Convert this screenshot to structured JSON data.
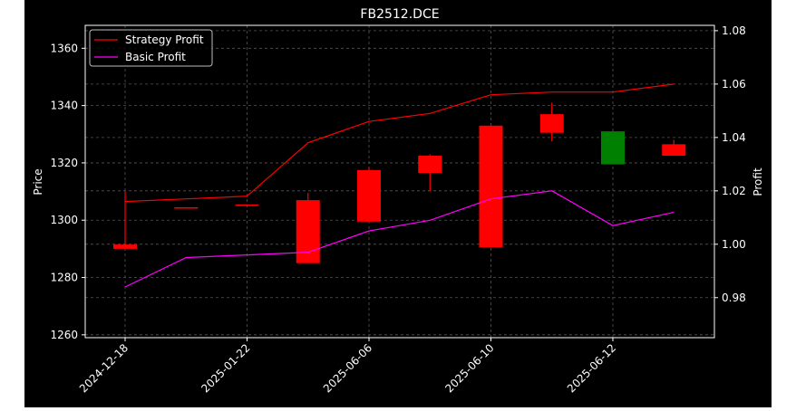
{
  "chart_data": {
    "type": "candlestick",
    "title": "FB2512.DCE",
    "xlabel": "",
    "ylabel": "Price",
    "ylabel_right": "Profit",
    "background": "#000000",
    "plot_background": "#000000",
    "grid": true,
    "legend_position": "upper-left",
    "x_tick_labels": [
      "2024-12-18",
      "2025-01-22",
      "2025-06-06",
      "2025-06-10",
      "2025-06-12"
    ],
    "x_tick_positions": [
      0,
      2,
      4,
      6,
      8
    ],
    "ylim_left": [
      1259,
      1368
    ],
    "ylim_right": [
      0.965,
      1.082
    ],
    "yticks_left": [
      1260,
      1280,
      1300,
      1320,
      1340,
      1360
    ],
    "yticks_right": [
      0.98,
      1.0,
      1.02,
      1.04,
      1.06,
      1.08
    ],
    "candles": [
      {
        "x": 0,
        "open": 1291.5,
        "close": 1290.0,
        "high": 1310.0,
        "low": 1290.0,
        "color": "#ff0000"
      },
      {
        "x": 1,
        "open": 1304.5,
        "close": 1304.5,
        "high": 1304.5,
        "low": 1304.5,
        "color": "#ff0000"
      },
      {
        "x": 2,
        "open": 1305.5,
        "close": 1305.5,
        "high": 1305.5,
        "low": 1305.5,
        "color": "#ff0000"
      },
      {
        "x": 3,
        "open": 1285.0,
        "close": 1307.0,
        "high": 1309.5,
        "low": 1285.0,
        "color": "#ff0000"
      },
      {
        "x": 4,
        "open": 1299.5,
        "close": 1317.5,
        "high": 1318.5,
        "low": 1299.5,
        "color": "#ff0000"
      },
      {
        "x": 5,
        "open": 1316.5,
        "close": 1322.5,
        "high": 1323.0,
        "low": 1310.0,
        "color": "#ff0000"
      },
      {
        "x": 6,
        "open": 1290.5,
        "close": 1333.0,
        "high": 1333.0,
        "low": 1290.5,
        "color": "#ff0000"
      },
      {
        "x": 7,
        "open": 1330.5,
        "close": 1337.0,
        "high": 1341.0,
        "low": 1327.5,
        "color": "#ff0000"
      },
      {
        "x": 8,
        "open": 1331.0,
        "close": 1319.5,
        "high": 1331.0,
        "low": 1319.5,
        "color": "#008000"
      },
      {
        "x": 9,
        "open": 1322.5,
        "close": 1326.5,
        "high": 1328.0,
        "low": 1322.5,
        "color": "#ff0000"
      }
    ],
    "series": [
      {
        "name": "Strategy Profit",
        "color": "#ff0000",
        "axis": "right",
        "x": [
          0,
          1,
          2,
          3,
          4,
          5,
          6,
          7,
          8,
          9
        ],
        "values": [
          1.016,
          1.017,
          1.018,
          1.038,
          1.046,
          1.049,
          1.056,
          1.057,
          1.057,
          1.06
        ]
      },
      {
        "name": "Basic Profit",
        "color": "#ff00ff",
        "axis": "right",
        "x": [
          0,
          1,
          2,
          3,
          4,
          5,
          6,
          7,
          8,
          9
        ],
        "values": [
          0.984,
          0.995,
          0.996,
          0.997,
          1.005,
          1.009,
          1.017,
          1.02,
          1.007,
          1.012
        ]
      }
    ]
  }
}
